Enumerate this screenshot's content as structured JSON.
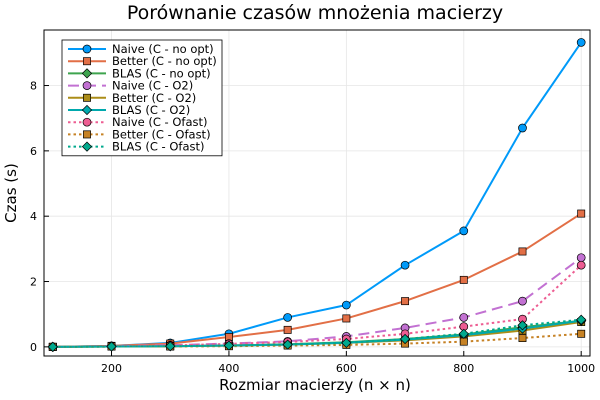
{
  "chart_data": {
    "type": "line",
    "title": "Porównanie czasów mnożenia macierzy",
    "xlabel": "Rozmiar macierzy (n × n)",
    "ylabel": "Czas (s)",
    "xlim": [
      85,
      1015
    ],
    "ylim": [
      -0.28,
      9.7
    ],
    "xticks": [
      200,
      400,
      600,
      800,
      1000
    ],
    "yticks": [
      0,
      2,
      4,
      6,
      8
    ],
    "grid": true,
    "legend_position": "top-left",
    "x": [
      100,
      200,
      300,
      400,
      500,
      600,
      700,
      800,
      900,
      1000
    ],
    "series": [
      {
        "name": "Naive (C - no opt)",
        "color": "#009af9",
        "marker": "circle",
        "dash": "solid",
        "values": [
          0.0,
          0.03,
          0.12,
          0.4,
          0.9,
          1.28,
          2.5,
          3.55,
          6.7,
          9.32
        ]
      },
      {
        "name": "Better (C - no opt)",
        "color": "#e26f46",
        "marker": "square",
        "dash": "solid",
        "values": [
          0.0,
          0.03,
          0.1,
          0.3,
          0.52,
          0.87,
          1.4,
          2.05,
          2.92,
          4.08
        ]
      },
      {
        "name": "BLAS (C - no opt)",
        "color": "#3ea44e",
        "marker": "diamond",
        "dash": "solid",
        "values": [
          0.0,
          0.01,
          0.02,
          0.04,
          0.08,
          0.14,
          0.24,
          0.38,
          0.6,
          0.8
        ]
      },
      {
        "name": "Naive (C - O2)",
        "color": "#c271d2",
        "marker": "circle",
        "dash": "longdash",
        "values": [
          0.0,
          0.02,
          0.05,
          0.1,
          0.17,
          0.32,
          0.58,
          0.9,
          1.4,
          2.73
        ]
      },
      {
        "name": "Better (C - O2)",
        "color": "#ac8d18",
        "marker": "square",
        "dash": "solid",
        "values": [
          0.0,
          0.01,
          0.02,
          0.04,
          0.07,
          0.12,
          0.2,
          0.32,
          0.5,
          0.76
        ]
      },
      {
        "name": "BLAS (C - O2)",
        "color": "#00a9ad",
        "marker": "diamond",
        "dash": "solid",
        "values": [
          0.0,
          0.01,
          0.02,
          0.04,
          0.07,
          0.13,
          0.22,
          0.36,
          0.56,
          0.8
        ]
      },
      {
        "name": "Naive (C - Ofast)",
        "color": "#ed5d92",
        "marker": "circle",
        "dash": "dot",
        "values": [
          0.0,
          0.02,
          0.04,
          0.09,
          0.15,
          0.24,
          0.4,
          0.62,
          0.85,
          2.5
        ]
      },
      {
        "name": "Better (C - Ofast)",
        "color": "#c68225",
        "marker": "square",
        "dash": "dot",
        "values": [
          0.0,
          0.01,
          0.01,
          0.02,
          0.04,
          0.06,
          0.1,
          0.16,
          0.27,
          0.4
        ]
      },
      {
        "name": "BLAS (C - Ofast)",
        "color": "#00a98d",
        "marker": "diamond",
        "dash": "dot",
        "values": [
          0.0,
          0.01,
          0.02,
          0.04,
          0.07,
          0.12,
          0.24,
          0.4,
          0.66,
          0.83
        ]
      }
    ]
  }
}
